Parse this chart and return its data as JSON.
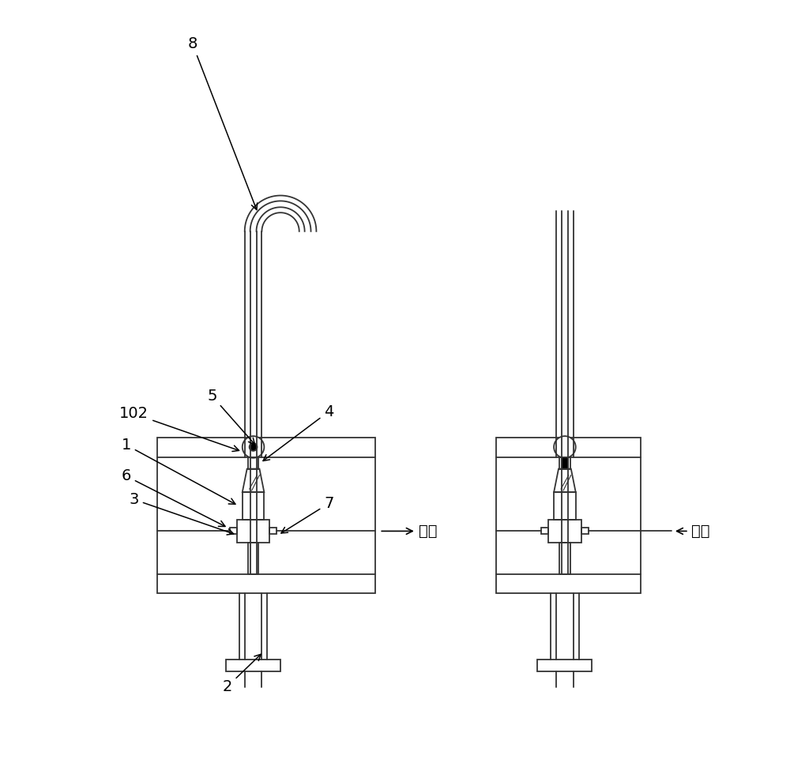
{
  "bg_color": "#ffffff",
  "line_color": "#333333",
  "lw": 1.3,
  "fig_width": 10.0,
  "fig_height": 9.85
}
